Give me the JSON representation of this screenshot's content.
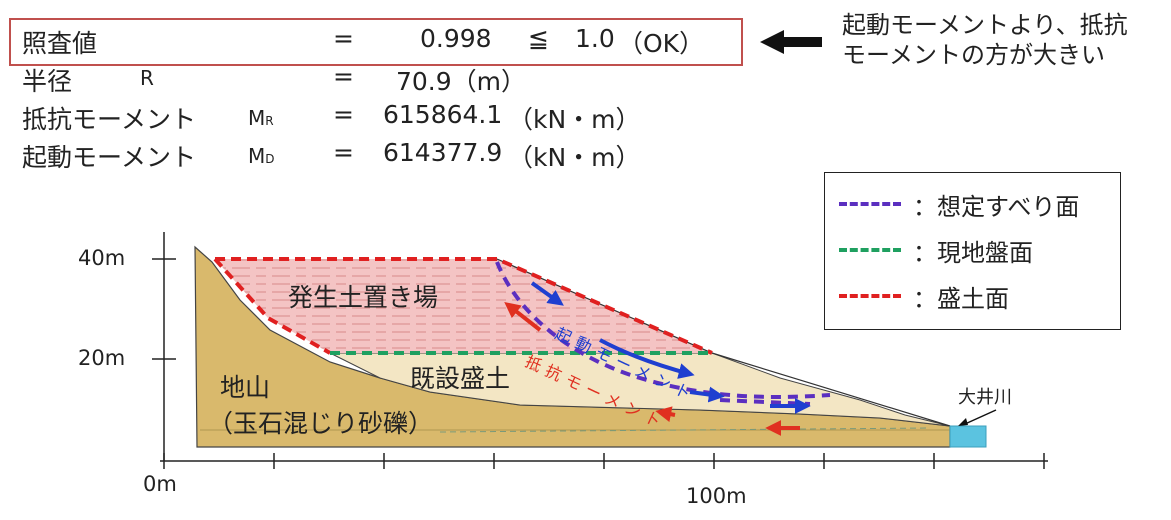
{
  "summary": {
    "safety": {
      "label": "照査値",
      "eq": "=",
      "value": "0.998",
      "cmp": "≦",
      "limit": "1.0",
      "result": "（OK）"
    },
    "radius": {
      "label": "半径",
      "symbol": "R",
      "eq": "=",
      "value": "70.9（m）"
    },
    "resisting": {
      "label": "抵抗モーメント",
      "symbol": "M",
      "sub": "R",
      "eq": "=",
      "value": "615864.1",
      "unit": "（kN・m）"
    },
    "driving": {
      "label": "起動モーメント",
      "symbol": "M",
      "sub": "D",
      "eq": "=",
      "value": "614377.9",
      "unit": "（kN・m）"
    }
  },
  "note": {
    "line1": "起動モーメントより、抵抗",
    "line2": "モーメントの方が大きい"
  },
  "legend": [
    {
      "text": "：想定すべり面",
      "color": "#5b2fc0"
    },
    {
      "text": "：現地盤面",
      "color": "#1fa060"
    },
    {
      "text": "：盛土面",
      "color": "#e02020"
    }
  ],
  "section": {
    "y_ticks": [
      "40m",
      "20m"
    ],
    "x_ticks": [
      "0m",
      "100m"
    ],
    "labels": {
      "fill_yard": "発生土置き場",
      "existing_fill": "既設盛土",
      "ground_line1": "地山",
      "ground_line2": "（玉石混じり砂礫）",
      "river": "大井川",
      "driving_moment": "起動モーメント",
      "resisting_moment": "抵抗モーメント"
    }
  },
  "colors": {
    "ground": "#d9b96c",
    "existing_fill": "#f3e6c4",
    "spoil_fill": "#f4c4c4",
    "box_red": "#c0504d",
    "water": "#5bc3e0"
  }
}
